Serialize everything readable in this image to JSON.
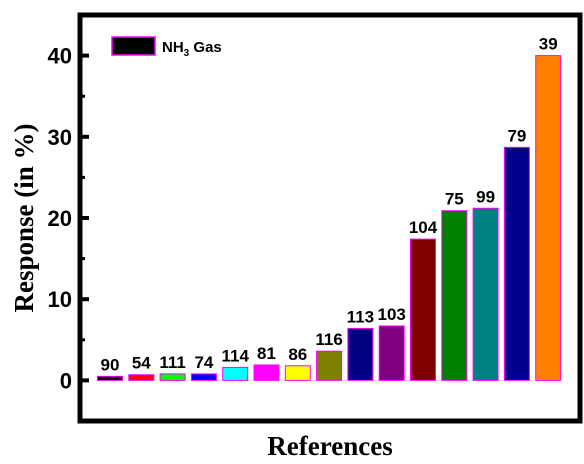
{
  "chart_data": {
    "type": "bar",
    "categories": [
      "90",
      "54",
      "111",
      "74",
      "114",
      "81",
      "86",
      "116",
      "113",
      "103",
      "104",
      "75",
      "99",
      "79",
      "39"
    ],
    "values": [
      0.5,
      0.7,
      0.8,
      0.8,
      1.6,
      1.9,
      1.8,
      3.6,
      6.4,
      6.7,
      17.4,
      20.9,
      21.2,
      28.7,
      40.0
    ],
    "colors": [
      "#000000",
      "#ff0000",
      "#00ff00",
      "#0000ff",
      "#00ffff",
      "#ff00ff",
      "#ffff00",
      "#808000",
      "#000080",
      "#800080",
      "#800000",
      "#008000",
      "#008080",
      "#00008b",
      "#ff8000"
    ],
    "xlabel": "References",
    "ylabel": "Response (in %)",
    "ylim": [
      -5,
      45
    ],
    "yticks": [
      "0",
      "10",
      "20",
      "30",
      "40"
    ],
    "legend": {
      "name": "NH",
      "subscript": "3",
      "suffix": " Gas",
      "color": "#000000",
      "position": "top-left"
    },
    "grid": false
  }
}
